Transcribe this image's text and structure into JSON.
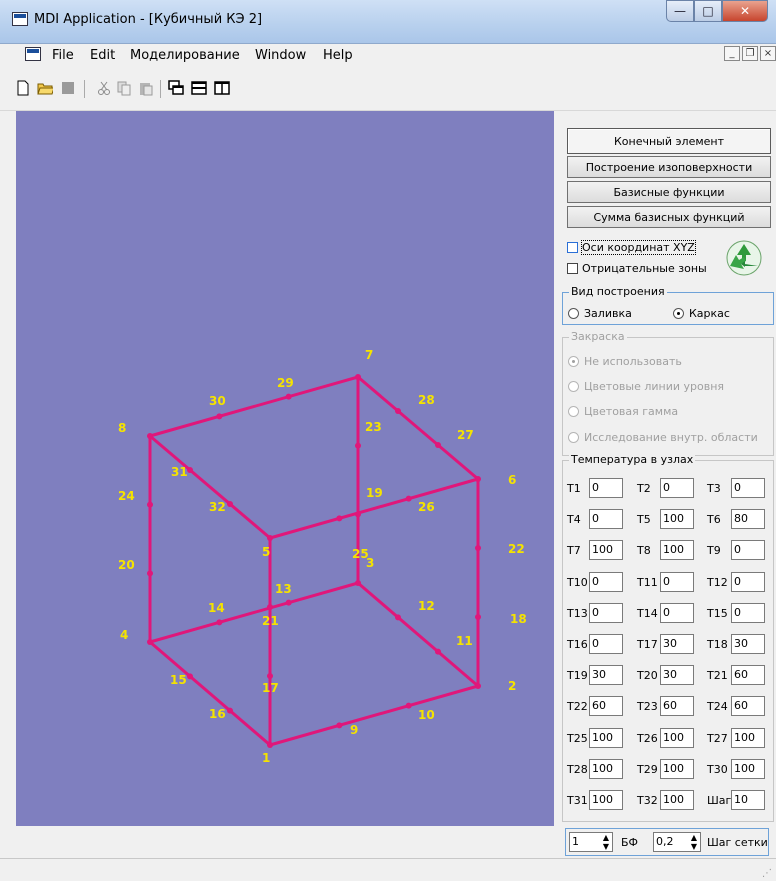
{
  "window": {
    "title": "MDI Application - [Кубичный КЭ 2]"
  },
  "menu": [
    "File",
    "Edit",
    "Моделирование",
    "Window",
    "Help"
  ],
  "toolbar": {
    "icons": [
      "new-file-icon",
      "open-folder-icon",
      "save-icon",
      "cut-icon",
      "copy-icon",
      "paste-icon",
      "cascade-windows-icon",
      "tile-horizontal-icon",
      "tile-vertical-icon"
    ]
  },
  "panel": {
    "buttons": [
      "Конечный элемент",
      "Построение изоповерхности",
      "Базисные функции",
      "Сумма базисных функций"
    ],
    "checkbox_axes": "Оси координат XYZ",
    "checkbox_negative": "Отрицательные зоны",
    "view_group": {
      "title": "Вид построения",
      "options": [
        "Заливка",
        "Каркас"
      ],
      "selected": "Каркас"
    },
    "fill_group": {
      "title": "Закраска",
      "options": [
        "Не использовать",
        "Цветовые линии уровня",
        "Цветовая гамма",
        "Исследование внутр. области"
      ],
      "selected": "Не использовать"
    },
    "temp_group": {
      "title": "Температура в узлах"
    },
    "temps": [
      {
        "label": "T1",
        "value": "0"
      },
      {
        "label": "T2",
        "value": "0"
      },
      {
        "label": "T3",
        "value": "0"
      },
      {
        "label": "T4",
        "value": "0"
      },
      {
        "label": "T5",
        "value": "100"
      },
      {
        "label": "T6",
        "value": "80"
      },
      {
        "label": "T7",
        "value": "100"
      },
      {
        "label": "T8",
        "value": "100"
      },
      {
        "label": "T9",
        "value": "0"
      },
      {
        "label": "T10",
        "value": "0"
      },
      {
        "label": "T11",
        "value": "0"
      },
      {
        "label": "T12",
        "value": "0"
      },
      {
        "label": "T13",
        "value": "0"
      },
      {
        "label": "T14",
        "value": "0"
      },
      {
        "label": "T15",
        "value": "0"
      },
      {
        "label": "T16",
        "value": "0"
      },
      {
        "label": "T17",
        "value": "30"
      },
      {
        "label": "T18",
        "value": "30"
      },
      {
        "label": "T19",
        "value": "30"
      },
      {
        "label": "T20",
        "value": "30"
      },
      {
        "label": "T21",
        "value": "60"
      },
      {
        "label": "T22",
        "value": "60"
      },
      {
        "label": "T23",
        "value": "60"
      },
      {
        "label": "T24",
        "value": "60"
      },
      {
        "label": "T25",
        "value": "100"
      },
      {
        "label": "T26",
        "value": "100"
      },
      {
        "label": "T27",
        "value": "100"
      },
      {
        "label": "T28",
        "value": "100"
      },
      {
        "label": "T29",
        "value": "100"
      },
      {
        "label": "T30",
        "value": "100"
      },
      {
        "label": "T31",
        "value": "100"
      },
      {
        "label": "T32",
        "value": "100"
      },
      {
        "label": "Шаг",
        "value": "10"
      }
    ],
    "bottom": {
      "spin1": "1",
      "bf_label": "БФ",
      "spin2": "0,2",
      "grid_step_label": "Шаг сетки"
    }
  },
  "model": {
    "node_labels": [
      "1",
      "2",
      "3",
      "4",
      "5",
      "6",
      "7",
      "8",
      "9",
      "10",
      "11",
      "12",
      "13",
      "14",
      "15",
      "16",
      "17",
      "18",
      "19",
      "20",
      "21",
      "22",
      "23",
      "24",
      "25",
      "26",
      "27",
      "28",
      "29",
      "30",
      "31",
      "32"
    ],
    "edge_color": "#e0177a",
    "label_color": "#f5e300",
    "background": "#7f7fbf"
  }
}
